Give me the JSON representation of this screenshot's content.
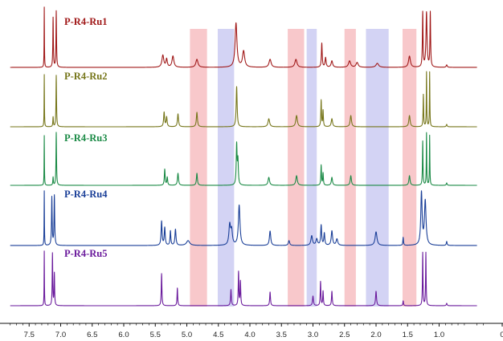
{
  "chart_data": {
    "type": "line",
    "title": "",
    "xlabel": "",
    "ylabel": "",
    "x_axis": {
      "reversed": true,
      "xlim": [
        7.8,
        0.0
      ],
      "ticks": [
        {
          "value": 7.5,
          "label": "7.5"
        },
        {
          "value": 7.0,
          "label": "7.0"
        },
        {
          "value": 6.5,
          "label": "6.5"
        },
        {
          "value": 6.0,
          "label": "6.0"
        },
        {
          "value": 5.5,
          "label": "5.5"
        },
        {
          "value": 5.0,
          "label": "5.0"
        },
        {
          "value": 4.5,
          "label": "4.5"
        },
        {
          "value": 4.0,
          "label": "4.0"
        },
        {
          "value": 3.5,
          "label": "3.5"
        },
        {
          "value": 3.0,
          "label": "3.0"
        },
        {
          "value": 2.5,
          "label": "2.5"
        },
        {
          "value": 2.0,
          "label": "2.0"
        },
        {
          "value": 1.5,
          "label": "1.5"
        },
        {
          "value": 1.0,
          "label": "1.0"
        },
        {
          "value": 0.0,
          "label": "0"
        }
      ],
      "grid": false
    },
    "highlight_bands": [
      {
        "from": 4.95,
        "to": 4.68,
        "color": "#f4a3a8"
      },
      {
        "from": 4.51,
        "to": 4.25,
        "color": "#b5b5ec"
      },
      {
        "from": 3.4,
        "to": 3.14,
        "color": "#f4a3a8"
      },
      {
        "from": 3.1,
        "to": 2.94,
        "color": "#b5b5ec"
      },
      {
        "from": 2.5,
        "to": 2.32,
        "color": "#f4a3a8"
      },
      {
        "from": 2.16,
        "to": 1.8,
        "color": "#b5b5ec"
      },
      {
        "from": 1.58,
        "to": 1.36,
        "color": "#f4a3a8"
      }
    ],
    "series": [
      {
        "name": "P-R4-Ru1",
        "color": "#a01818",
        "peaks": [
          {
            "x": 7.26,
            "h": 75,
            "w": 0.006
          },
          {
            "x": 7.12,
            "h": 62,
            "w": 0.01
          },
          {
            "x": 7.07,
            "h": 70,
            "w": 0.01
          },
          {
            "x": 5.38,
            "h": 15,
            "w": 0.035
          },
          {
            "x": 5.32,
            "h": 10,
            "w": 0.025
          },
          {
            "x": 5.22,
            "h": 14,
            "w": 0.035
          },
          {
            "x": 4.84,
            "h": 10,
            "w": 0.04
          },
          {
            "x": 4.22,
            "h": 55,
            "w": 0.035
          },
          {
            "x": 4.1,
            "h": 20,
            "w": 0.04
          },
          {
            "x": 3.68,
            "h": 10,
            "w": 0.04
          },
          {
            "x": 3.27,
            "h": 10,
            "w": 0.04
          },
          {
            "x": 2.86,
            "h": 30,
            "w": 0.015
          },
          {
            "x": 2.8,
            "h": 12,
            "w": 0.02
          },
          {
            "x": 2.7,
            "h": 8,
            "w": 0.03
          },
          {
            "x": 2.42,
            "h": 8,
            "w": 0.04
          },
          {
            "x": 2.3,
            "h": 6,
            "w": 0.04
          },
          {
            "x": 1.98,
            "h": 5,
            "w": 0.05
          },
          {
            "x": 1.47,
            "h": 14,
            "w": 0.035
          },
          {
            "x": 1.26,
            "h": 68,
            "w": 0.012
          },
          {
            "x": 1.2,
            "h": 68,
            "w": 0.02
          },
          {
            "x": 1.14,
            "h": 68,
            "w": 0.012
          },
          {
            "x": 0.88,
            "h": 3,
            "w": 0.02
          }
        ]
      },
      {
        "name": "P-R4-Ru2",
        "color": "#76761a",
        "peaks": [
          {
            "x": 7.26,
            "h": 65,
            "w": 0.006
          },
          {
            "x": 7.12,
            "h": 12,
            "w": 0.01
          },
          {
            "x": 7.07,
            "h": 64,
            "w": 0.01
          },
          {
            "x": 5.36,
            "h": 18,
            "w": 0.018
          },
          {
            "x": 5.32,
            "h": 12,
            "w": 0.018
          },
          {
            "x": 5.14,
            "h": 16,
            "w": 0.02
          },
          {
            "x": 4.84,
            "h": 18,
            "w": 0.02
          },
          {
            "x": 4.21,
            "h": 50,
            "w": 0.018
          },
          {
            "x": 3.7,
            "h": 10,
            "w": 0.03
          },
          {
            "x": 3.26,
            "h": 14,
            "w": 0.03
          },
          {
            "x": 2.87,
            "h": 33,
            "w": 0.012
          },
          {
            "x": 2.84,
            "h": 20,
            "w": 0.012
          },
          {
            "x": 2.7,
            "h": 10,
            "w": 0.025
          },
          {
            "x": 2.4,
            "h": 14,
            "w": 0.025
          },
          {
            "x": 1.47,
            "h": 14,
            "w": 0.025
          },
          {
            "x": 1.25,
            "h": 40,
            "w": 0.01
          },
          {
            "x": 1.2,
            "h": 68,
            "w": 0.008
          },
          {
            "x": 1.15,
            "h": 68,
            "w": 0.008
          },
          {
            "x": 0.88,
            "h": 3,
            "w": 0.015
          }
        ]
      },
      {
        "name": "P-R4-Ru3",
        "color": "#1a8a45",
        "peaks": [
          {
            "x": 7.26,
            "h": 62,
            "w": 0.006
          },
          {
            "x": 7.12,
            "h": 10,
            "w": 0.01
          },
          {
            "x": 7.07,
            "h": 66,
            "w": 0.01
          },
          {
            "x": 5.35,
            "h": 20,
            "w": 0.015
          },
          {
            "x": 5.31,
            "h": 10,
            "w": 0.015
          },
          {
            "x": 5.14,
            "h": 15,
            "w": 0.02
          },
          {
            "x": 4.84,
            "h": 15,
            "w": 0.018
          },
          {
            "x": 4.21,
            "h": 50,
            "w": 0.016
          },
          {
            "x": 4.19,
            "h": 30,
            "w": 0.016
          },
          {
            "x": 3.7,
            "h": 10,
            "w": 0.028
          },
          {
            "x": 3.26,
            "h": 12,
            "w": 0.028
          },
          {
            "x": 2.87,
            "h": 25,
            "w": 0.012
          },
          {
            "x": 2.84,
            "h": 15,
            "w": 0.012
          },
          {
            "x": 2.7,
            "h": 10,
            "w": 0.022
          },
          {
            "x": 2.4,
            "h": 12,
            "w": 0.022
          },
          {
            "x": 1.47,
            "h": 12,
            "w": 0.022
          },
          {
            "x": 1.26,
            "h": 55,
            "w": 0.01
          },
          {
            "x": 1.2,
            "h": 65,
            "w": 0.008
          },
          {
            "x": 1.15,
            "h": 62,
            "w": 0.008
          },
          {
            "x": 0.88,
            "h": 3,
            "w": 0.015
          }
        ]
      },
      {
        "name": "P-R4-Ru4",
        "color": "#1a3f98",
        "peaks": [
          {
            "x": 7.26,
            "h": 68,
            "w": 0.006
          },
          {
            "x": 7.14,
            "h": 60,
            "w": 0.012
          },
          {
            "x": 7.1,
            "h": 62,
            "w": 0.012
          },
          {
            "x": 5.4,
            "h": 30,
            "w": 0.018
          },
          {
            "x": 5.35,
            "h": 22,
            "w": 0.018
          },
          {
            "x": 5.26,
            "h": 18,
            "w": 0.015
          },
          {
            "x": 5.18,
            "h": 20,
            "w": 0.02
          },
          {
            "x": 4.98,
            "h": 6,
            "w": 0.06
          },
          {
            "x": 4.32,
            "h": 25,
            "w": 0.03
          },
          {
            "x": 4.29,
            "h": 18,
            "w": 0.03
          },
          {
            "x": 4.17,
            "h": 50,
            "w": 0.03
          },
          {
            "x": 3.68,
            "h": 18,
            "w": 0.025
          },
          {
            "x": 3.38,
            "h": 6,
            "w": 0.025
          },
          {
            "x": 3.02,
            "h": 12,
            "w": 0.03
          },
          {
            "x": 2.94,
            "h": 8,
            "w": 0.03
          },
          {
            "x": 2.87,
            "h": 25,
            "w": 0.018
          },
          {
            "x": 2.82,
            "h": 15,
            "w": 0.018
          },
          {
            "x": 2.7,
            "h": 18,
            "w": 0.025
          },
          {
            "x": 2.62,
            "h": 8,
            "w": 0.03
          },
          {
            "x": 2.0,
            "h": 17,
            "w": 0.035
          },
          {
            "x": 1.57,
            "h": 10,
            "w": 0.012
          },
          {
            "x": 1.28,
            "h": 65,
            "w": 0.025
          },
          {
            "x": 1.22,
            "h": 55,
            "w": 0.03
          },
          {
            "x": 0.88,
            "h": 5,
            "w": 0.015
          }
        ]
      },
      {
        "name": "P-R4-Ru5",
        "color": "#6a1a9c",
        "peaks": [
          {
            "x": 7.26,
            "h": 68,
            "w": 0.006
          },
          {
            "x": 7.13,
            "h": 65,
            "w": 0.01
          },
          {
            "x": 7.1,
            "h": 40,
            "w": 0.01
          },
          {
            "x": 5.4,
            "h": 40,
            "w": 0.012
          },
          {
            "x": 5.15,
            "h": 22,
            "w": 0.012
          },
          {
            "x": 4.3,
            "h": 20,
            "w": 0.015
          },
          {
            "x": 4.18,
            "h": 42,
            "w": 0.012
          },
          {
            "x": 4.15,
            "h": 30,
            "w": 0.012
          },
          {
            "x": 3.68,
            "h": 17,
            "w": 0.015
          },
          {
            "x": 3.0,
            "h": 12,
            "w": 0.018
          },
          {
            "x": 2.88,
            "h": 30,
            "w": 0.012
          },
          {
            "x": 2.84,
            "h": 18,
            "w": 0.012
          },
          {
            "x": 2.7,
            "h": 18,
            "w": 0.014
          },
          {
            "x": 2.0,
            "h": 18,
            "w": 0.018
          },
          {
            "x": 1.57,
            "h": 6,
            "w": 0.012
          },
          {
            "x": 1.26,
            "h": 66,
            "w": 0.01
          },
          {
            "x": 1.21,
            "h": 66,
            "w": 0.01
          },
          {
            "x": 0.88,
            "h": 3,
            "w": 0.015
          }
        ]
      }
    ]
  }
}
